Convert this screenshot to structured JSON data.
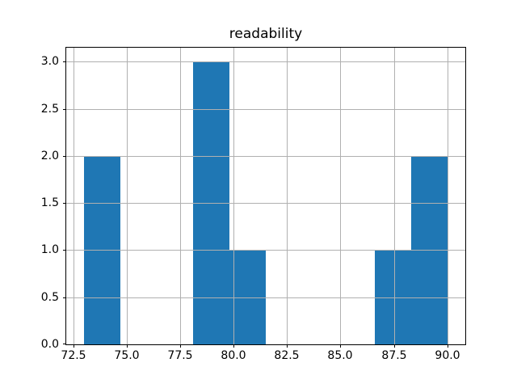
{
  "chart_data": {
    "type": "bar",
    "subtype": "histogram",
    "title": "readability",
    "xlabel": "",
    "ylabel": "",
    "bin_edges": [
      73.0,
      74.7,
      76.4,
      78.1,
      79.8,
      81.5,
      83.2,
      84.9,
      86.6,
      88.3,
      90.0
    ],
    "counts": [
      2,
      0,
      0,
      3,
      1,
      0,
      0,
      0,
      1,
      2
    ],
    "xlim": [
      72.15,
      90.85
    ],
    "ylim": [
      0,
      3.15
    ],
    "xticks": [
      72.5,
      75.0,
      77.5,
      80.0,
      82.5,
      85.0,
      87.5,
      90.0
    ],
    "xtick_labels": [
      "72.5",
      "75.0",
      "77.5",
      "80.0",
      "82.5",
      "85.0",
      "87.5",
      "90.0"
    ],
    "yticks": [
      0.0,
      0.5,
      1.0,
      1.5,
      2.0,
      2.5,
      3.0
    ],
    "ytick_labels": [
      "0.0",
      "0.5",
      "1.0",
      "1.5",
      "2.0",
      "2.5",
      "3.0"
    ],
    "grid": true,
    "grid_above_bars": true,
    "legend": false,
    "bar_color": "#1f77b4",
    "grid_color": "#b0b0b0",
    "axis_color": "#000000",
    "background_color": "#ffffff"
  }
}
